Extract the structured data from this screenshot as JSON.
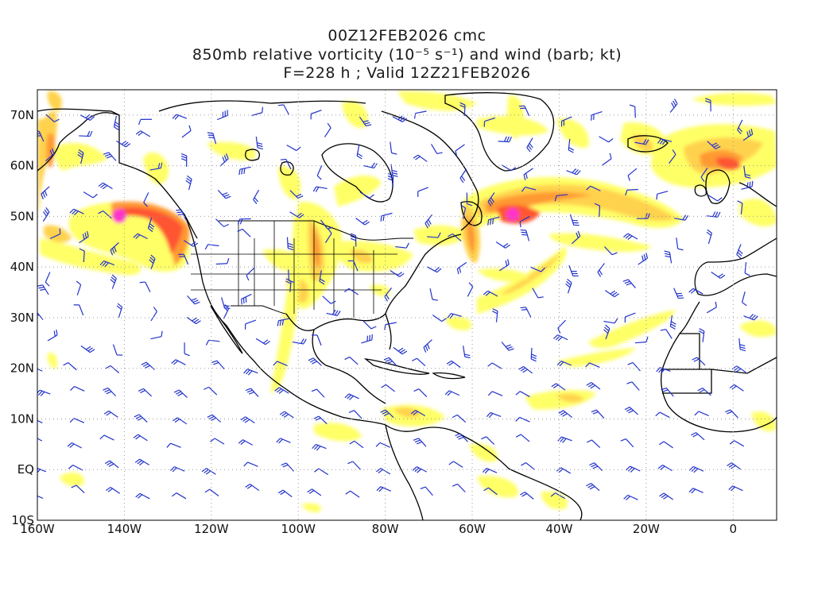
{
  "title": {
    "line1": "00Z12FEB2026 cmc",
    "line2": "850mb relative vorticity (10⁻⁵ s⁻¹) and wind (barb; kt)",
    "line3": "F=228 h ; Valid 12Z21FEB2026"
  },
  "map": {
    "projection": "cylindrical",
    "lon_range": [
      -160,
      10
    ],
    "lat_range": [
      -10,
      75
    ],
    "grid": "dotted",
    "lat_labels": [
      "70N",
      "60N",
      "50N",
      "40N",
      "30N",
      "20N",
      "10N",
      "EQ",
      "10S"
    ],
    "lon_labels": [
      "160W",
      "140W",
      "120W",
      "100W",
      "80W",
      "60W",
      "40W",
      "20W",
      "0"
    ],
    "colors": {
      "vort_low": "#ffff66",
      "vort_mid": "#ffd24d",
      "vort_high": "#ff9933",
      "vort_higher": "#ff5533",
      "vort_max": "#ff33cc",
      "barb": "#2233cc",
      "coast": "#000000"
    }
  },
  "vorticity_features": [
    {
      "name": "ne-pacific-low",
      "lon": -140,
      "lat": 49.5,
      "level": 5
    },
    {
      "name": "n-atlantic-low",
      "lon": -50,
      "lat": 50,
      "level": 5
    },
    {
      "name": "plains-front",
      "lon": -95,
      "lat": 42,
      "level": 4
    },
    {
      "name": "greenland-sea",
      "lon": -10,
      "lat": 62,
      "level": 3
    }
  ]
}
